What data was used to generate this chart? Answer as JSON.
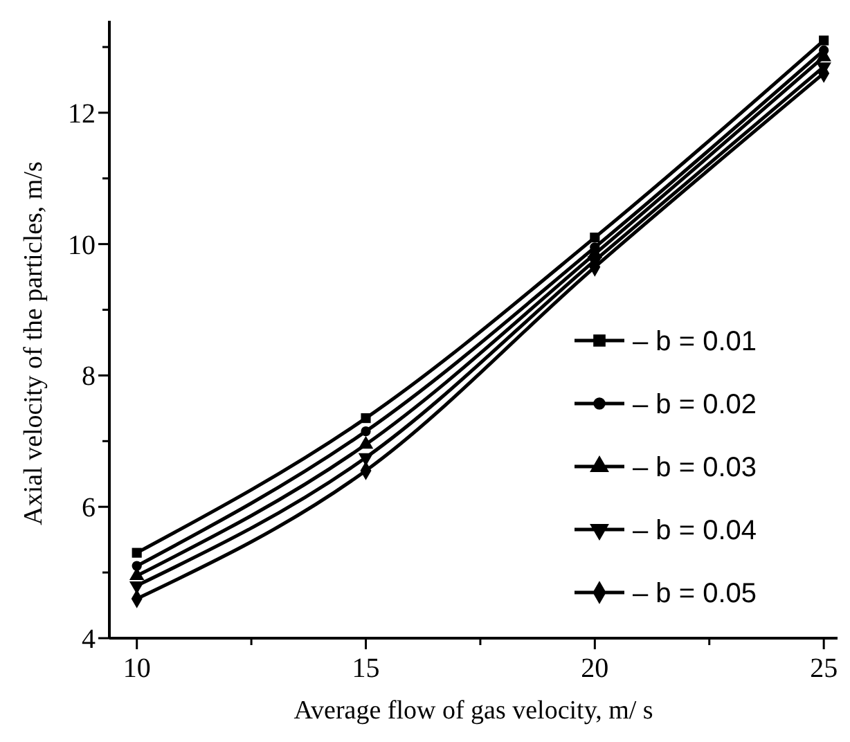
{
  "chart_data": {
    "type": "line",
    "xlabel": "Average flow of gas velocity, m/ s",
    "ylabel": "Axial velocity of the particles, m/s",
    "x": [
      10,
      15,
      20,
      25
    ],
    "series": [
      {
        "name": "– b = 0.01",
        "color": "#000000",
        "marker": "square",
        "values": [
          5.3,
          7.35,
          10.1,
          13.1
        ]
      },
      {
        "name": "– b = 0.02",
        "color": "#000000",
        "marker": "circle",
        "values": [
          5.1,
          7.15,
          9.95,
          12.95
        ]
      },
      {
        "name": "– b = 0.03",
        "color": "#000000",
        "marker": "triangle",
        "values": [
          4.95,
          6.95,
          9.85,
          12.85
        ]
      },
      {
        "name": "– b = 0.04",
        "color": "#000000",
        "marker": "triangle-down",
        "values": [
          4.8,
          6.75,
          9.75,
          12.7
        ]
      },
      {
        "name": "– b = 0.05",
        "color": "#000000",
        "marker": "diamond",
        "values": [
          4.6,
          6.55,
          9.65,
          12.6
        ]
      }
    ],
    "xlim": [
      9.4,
      25.3
    ],
    "xticks": [
      10,
      {
        "value": 12.5,
        "label": null
      },
      15,
      {
        "value": 17.5,
        "label": null
      },
      20,
      {
        "value": 22.5,
        "label": null
      },
      25
    ],
    "ylim": [
      4,
      13.4
    ],
    "yticks": [
      4,
      {
        "value": 5,
        "label": null
      },
      6,
      {
        "value": 7,
        "label": null
      },
      8,
      {
        "value": 9,
        "label": null
      },
      10,
      {
        "value": 11,
        "label": null
      },
      12,
      {
        "value": 13,
        "label": null
      }
    ],
    "grid": false,
    "legend": "right",
    "line_style": "solid"
  }
}
